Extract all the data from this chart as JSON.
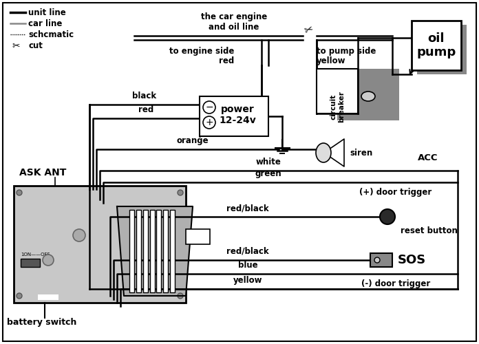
{
  "bg_color": "#ffffff",
  "lc": "#000000",
  "gc": "#888888",
  "lgc": "#aaaaaa",
  "legend_unit": "unit line",
  "legend_car": "car line",
  "legend_sch": "schcmatic",
  "legend_cut": "cut",
  "title_top": "the car engine\nand oil line",
  "oil_pump": "oil\npump",
  "circuit_breaker": "circuit\nbreaker",
  "power_label": "power\n12-24v",
  "siren_label": "siren",
  "acc_label": "ACC",
  "plus_door": "(+) door trigger",
  "minus_door": "(-) door trigger",
  "reset_label": "reset button",
  "sos_label": "SOS",
  "ask_ant": "ASK ANT",
  "battery_switch": "battery switch",
  "to_engine": "to engine side",
  "to_pump": "to pump side",
  "red_lbl": "red",
  "yellow_lbl": "yellow",
  "w_black": "black",
  "w_red": "red",
  "w_orange": "orange",
  "w_white": "white",
  "w_green": "green",
  "w_redblack1": "red/black",
  "w_redblack2": "red/black",
  "w_blue": "blue",
  "w_yellow": "yellow"
}
